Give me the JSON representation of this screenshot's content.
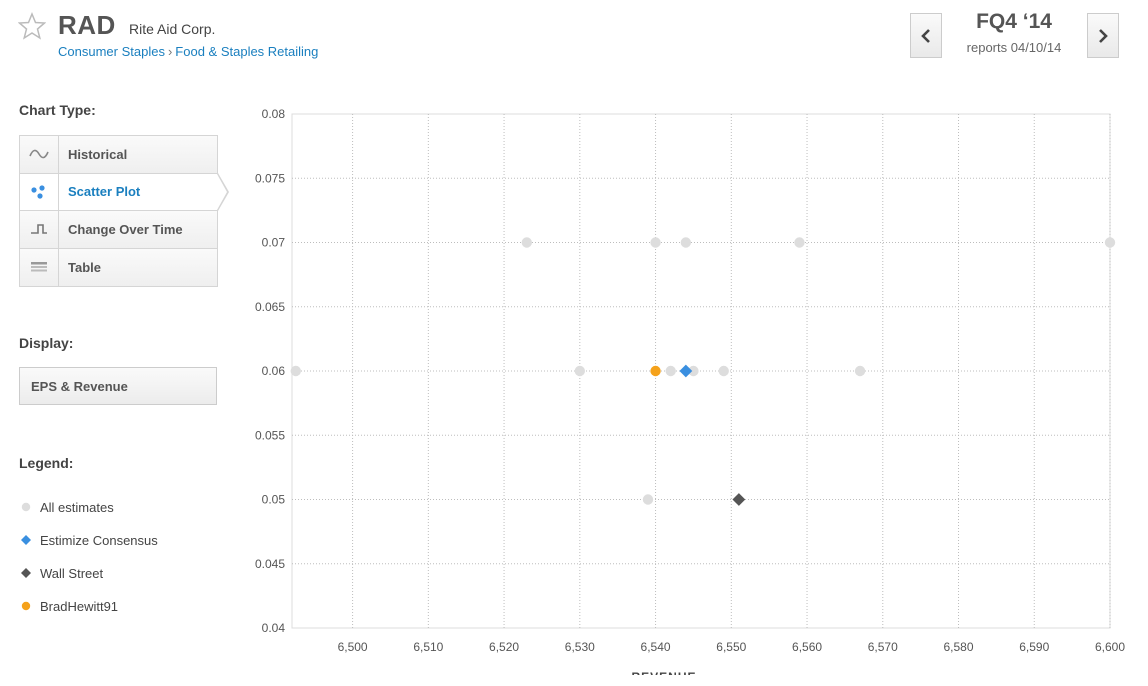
{
  "header": {
    "ticker": "RAD",
    "company": "Rite Aid Corp.",
    "sector": "Consumer Staples",
    "breadcrumb_sep": "›",
    "industry": "Food & Staples Retailing",
    "quarter": "FQ4 ‘14",
    "report_date": "reports 04/10/14",
    "prev_icon": "chevron-left-icon",
    "next_icon": "chevron-right-icon",
    "favorite_icon": "star-icon"
  },
  "sidebar": {
    "chart_type_label": "Chart Type:",
    "chart_types": [
      {
        "label": "Historical",
        "icon": "wave-icon",
        "active": false
      },
      {
        "label": "Scatter Plot",
        "icon": "scatter-icon",
        "active": true
      },
      {
        "label": "Change Over Time",
        "icon": "step-icon",
        "active": false
      },
      {
        "label": "Table",
        "icon": "table-icon",
        "active": false
      }
    ],
    "display_label": "Display:",
    "display_value": "EPS & Revenue",
    "legend_label": "Legend:",
    "legend": [
      {
        "label": "All estimates",
        "shape": "circle",
        "color": "#dddddd"
      },
      {
        "label": "Estimize Consensus",
        "shape": "diamond",
        "color": "#3a8fe0"
      },
      {
        "label": "Wall Street",
        "shape": "diamond",
        "color": "#555555"
      },
      {
        "label": "BradHewitt91",
        "shape": "circle",
        "color": "#f5a21b"
      }
    ]
  },
  "chart_data": {
    "type": "scatter",
    "xlabel": "REVENUE",
    "ylabel": "",
    "xlim": [
      6492,
      6600
    ],
    "ylim": [
      0.04,
      0.08
    ],
    "x_ticks": [
      6500,
      6510,
      6520,
      6530,
      6540,
      6550,
      6560,
      6570,
      6580,
      6590,
      6600
    ],
    "x_tick_labels": [
      "6,500",
      "6,510",
      "6,520",
      "6,530",
      "6,540",
      "6,550",
      "6,560",
      "6,570",
      "6,580",
      "6,590",
      "6,600"
    ],
    "y_ticks": [
      0.04,
      0.045,
      0.05,
      0.055,
      0.06,
      0.065,
      0.07,
      0.075,
      0.08
    ],
    "y_tick_labels": [
      "0.04",
      "0.045",
      "0.05",
      "0.055",
      "0.06",
      "0.065",
      "0.07",
      "0.075",
      "0.08"
    ],
    "grid": true,
    "series": [
      {
        "name": "All estimates",
        "shape": "circle",
        "color": "#dddddd",
        "points": [
          {
            "x": 6492.5,
            "y": 0.06
          },
          {
            "x": 6523,
            "y": 0.07
          },
          {
            "x": 6530,
            "y": 0.06
          },
          {
            "x": 6539,
            "y": 0.05
          },
          {
            "x": 6540,
            "y": 0.07
          },
          {
            "x": 6542,
            "y": 0.06
          },
          {
            "x": 6544,
            "y": 0.07
          },
          {
            "x": 6545,
            "y": 0.06
          },
          {
            "x": 6549,
            "y": 0.06
          },
          {
            "x": 6559,
            "y": 0.07
          },
          {
            "x": 6567,
            "y": 0.06
          },
          {
            "x": 6600,
            "y": 0.07
          }
        ]
      },
      {
        "name": "BradHewitt91",
        "shape": "circle",
        "color": "#f5a21b",
        "points": [
          {
            "x": 6540,
            "y": 0.06
          }
        ]
      },
      {
        "name": "Estimize Consensus",
        "shape": "diamond",
        "color": "#3a8fe0",
        "points": [
          {
            "x": 6544,
            "y": 0.06
          }
        ]
      },
      {
        "name": "Wall Street",
        "shape": "diamond",
        "color": "#555555",
        "points": [
          {
            "x": 6551,
            "y": 0.05
          }
        ]
      }
    ]
  }
}
